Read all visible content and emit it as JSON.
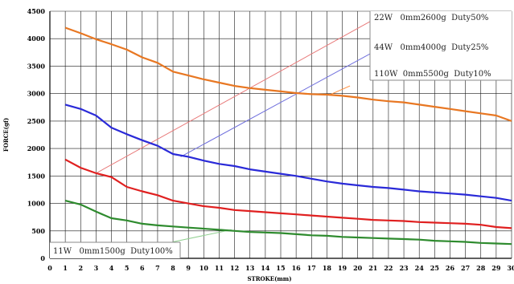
{
  "chart_data": {
    "type": "line",
    "xlabel": "STROKE(mm)",
    "ylabel": "FORCE(gf)",
    "xlim": [
      0,
      30
    ],
    "ylim": [
      0,
      4500
    ],
    "xticks": [
      0,
      1,
      2,
      3,
      4,
      5,
      6,
      7,
      8,
      9,
      10,
      11,
      12,
      13,
      14,
      15,
      16,
      17,
      18,
      19,
      20,
      21,
      22,
      23,
      24,
      25,
      26,
      27,
      28,
      29,
      30
    ],
    "yticks": [
      0,
      500,
      1000,
      1500,
      2000,
      2500,
      3000,
      3500,
      4000,
      4500
    ],
    "grid": true,
    "x": [
      1,
      2,
      3,
      4,
      5,
      6,
      7,
      8,
      9,
      10,
      11,
      12,
      13,
      14,
      15,
      16,
      17,
      18,
      19,
      20,
      21,
      22,
      23,
      24,
      25,
      26,
      27,
      28,
      29,
      30
    ],
    "series": [
      {
        "color": "#e87722",
        "values": [
          4200,
          4100,
          3990,
          3900,
          3800,
          3660,
          3560,
          3400,
          3330,
          3260,
          3200,
          3140,
          3100,
          3070,
          3040,
          3010,
          2990,
          2980,
          2960,
          2930,
          2890,
          2860,
          2840,
          2800,
          2760,
          2720,
          2680,
          2640,
          2600,
          2500
        ]
      },
      {
        "color": "#2a2ad8",
        "values": [
          2800,
          2720,
          2600,
          2380,
          2260,
          2150,
          2050,
          1900,
          1850,
          1780,
          1720,
          1680,
          1620,
          1580,
          1540,
          1500,
          1450,
          1400,
          1360,
          1330,
          1300,
          1280,
          1250,
          1220,
          1200,
          1180,
          1160,
          1130,
          1100,
          1050
        ]
      },
      {
        "color": "#e02020",
        "values": [
          1800,
          1650,
          1550,
          1480,
          1300,
          1220,
          1150,
          1050,
          1000,
          950,
          920,
          880,
          860,
          840,
          820,
          800,
          780,
          760,
          740,
          720,
          700,
          690,
          680,
          660,
          650,
          640,
          630,
          610,
          570,
          550
        ]
      },
      {
        "color": "#2e8b2e",
        "values": [
          1050,
          980,
          850,
          730,
          690,
          630,
          600,
          580,
          560,
          540,
          520,
          500,
          480,
          470,
          460,
          440,
          420,
          410,
          390,
          380,
          370,
          360,
          350,
          340,
          320,
          310,
          300,
          280,
          270,
          260
        ]
      }
    ],
    "guides": [
      {
        "color": "#e87a7a",
        "from": [
          3,
          1550
        ],
        "to": [
          21.5,
          4420
        ]
      },
      {
        "color": "#7070dd",
        "from": [
          8.5,
          1850
        ],
        "to": [
          21.5,
          3830
        ]
      },
      {
        "color": "#ff8c3a",
        "from": [
          18.2,
          2980
        ],
        "to": [
          19.5,
          3140
        ]
      },
      {
        "color": "#8fcf8f",
        "from": [
          8,
          300
        ],
        "to": [
          11.8,
          520
        ]
      }
    ],
    "annotations": [
      {
        "id": "ann-22w",
        "text": "22W   0mm2600g  Duty50%"
      },
      {
        "id": "ann-44w",
        "text": "44W   0mm4000g  Duty25%"
      },
      {
        "id": "ann-110w",
        "text": "110W  0mm5500g  Duty10%"
      },
      {
        "id": "ann-11w",
        "text": "11W   0mm1500g  Duty100%"
      }
    ]
  }
}
